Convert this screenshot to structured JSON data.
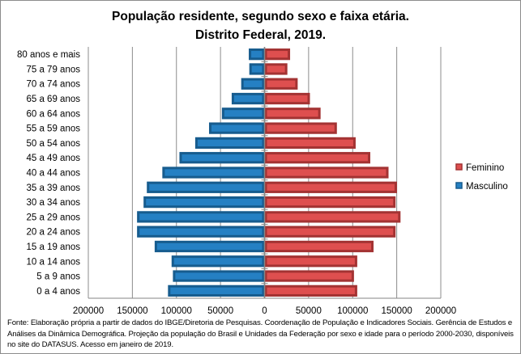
{
  "chart_data": {
    "type": "bar",
    "orientation": "horizontal-pyramid",
    "title": "População residente, segundo sexo e faixa etária.",
    "subtitle": "Distrito  Federal, 2019.",
    "categories": [
      "0 a 4 anos",
      "5 a 9 anos",
      "10 a 14 anos",
      "15 a 19 anos",
      "20 a 24 anos",
      "25 a 29 anos",
      "30 a 34 anos",
      "35 a 39 anos",
      "40 a 44 anos",
      "45 a 49 anos",
      "50 a 54 anos",
      "55 a 59 anos",
      "60 a 64 anos",
      "65 a 69 anos",
      "70 a 74 anos",
      "75 a 79 anos",
      "80 anos e mais"
    ],
    "series": [
      {
        "name": "Masculino",
        "color": "#2580C3",
        "border": "#175C8E",
        "side": "left",
        "values": [
          109600,
          104000,
          105500,
          124700,
          144700,
          144700,
          137300,
          133600,
          116000,
          96600,
          78700,
          63000,
          48400,
          37300,
          26500,
          17300,
          17900
        ]
      },
      {
        "name": "Feminino",
        "color": "#DE4F4F",
        "border": "#A33333",
        "side": "right",
        "values": [
          105200,
          101500,
          105200,
          123700,
          148700,
          154300,
          148700,
          150300,
          140700,
          120000,
          103400,
          82100,
          63600,
          51500,
          37600,
          25900,
          29000
        ]
      }
    ],
    "xlim": [
      -200000,
      200000
    ],
    "x_ticks": [
      -200000,
      -150000,
      -100000,
      -50000,
      0,
      50000,
      100000,
      150000,
      200000
    ],
    "x_tick_labels": [
      "200000",
      "150000",
      "100000",
      "50000",
      "0",
      "50000",
      "100000",
      "150000",
      "200000"
    ],
    "grid": "vertical",
    "legend": [
      "Feminino",
      "Masculino"
    ],
    "legend_position": "right"
  },
  "footnote": "Fonte:  Elaboração própria a partir de dados  do  IBGE/Diretoria de Pesquisas. Coordenação de População e Indicadores Sociais. Gerência de Estudos e Análises da Dinâmica Demográfica. Projeção da população do Brasil e Unidades da Federação por sexo e idade para o período 2000-2030, disponíveis no site do DATASUS. Acesso em  janeiro de 2019."
}
